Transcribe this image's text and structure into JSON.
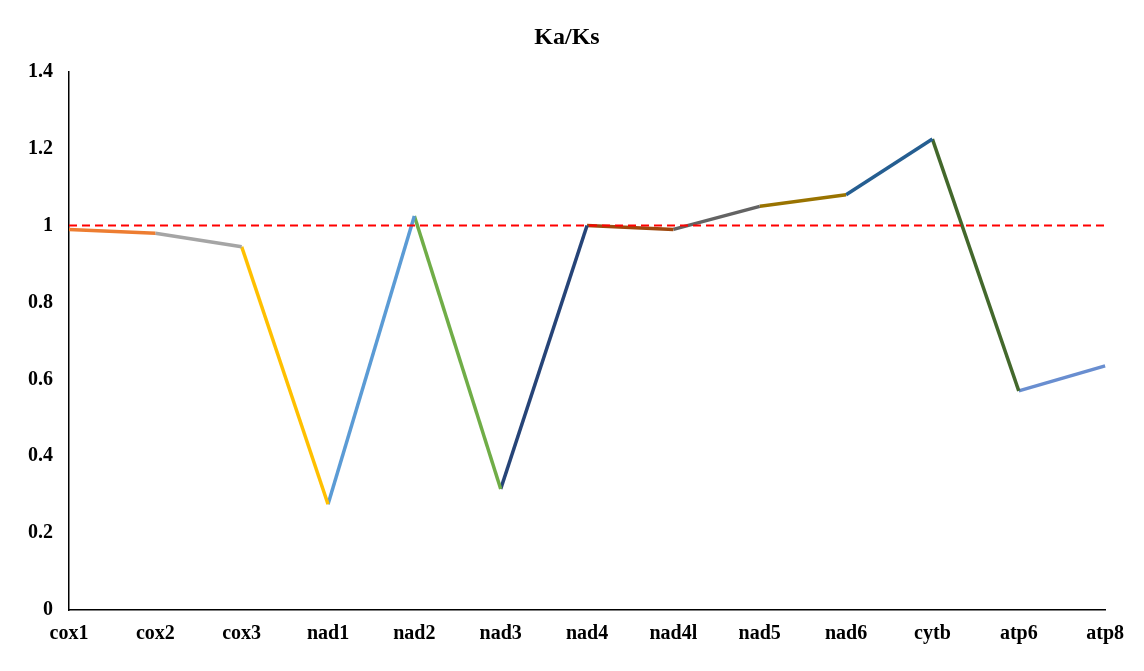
{
  "chart_data": {
    "type": "line",
    "title": "Ka/Ks",
    "categories": [
      "cox1",
      "cox2",
      "cox3",
      "nad1",
      "nad2",
      "nad3",
      "nad4",
      "nad4l",
      "nad5",
      "nad6",
      "cytb",
      "atp6",
      "atp8"
    ],
    "series": [
      {
        "color": "#ed7d31",
        "values": [
          0.99,
          0.98,
          null,
          null,
          null,
          null,
          null,
          null,
          null,
          null,
          null,
          null,
          null
        ]
      },
      {
        "color": "#a5a5a5",
        "values": [
          null,
          0.98,
          0.945,
          null,
          null,
          null,
          null,
          null,
          null,
          null,
          null,
          null,
          null
        ]
      },
      {
        "color": "#ffc000",
        "values": [
          null,
          null,
          0.945,
          0.275,
          null,
          null,
          null,
          null,
          null,
          null,
          null,
          null,
          null
        ]
      },
      {
        "color": "#5b9bd5",
        "values": [
          null,
          null,
          null,
          0.275,
          1.025,
          null,
          null,
          null,
          null,
          null,
          null,
          null,
          null
        ]
      },
      {
        "color": "#70ad47",
        "values": [
          null,
          null,
          null,
          null,
          1.025,
          0.315,
          null,
          null,
          null,
          null,
          null,
          null,
          null
        ]
      },
      {
        "color": "#264478",
        "values": [
          null,
          null,
          null,
          null,
          null,
          0.315,
          1.0,
          null,
          null,
          null,
          null,
          null,
          null
        ]
      },
      {
        "color": "#9e480e",
        "values": [
          null,
          null,
          null,
          null,
          null,
          null,
          1.0,
          0.99,
          null,
          null,
          null,
          null,
          null
        ]
      },
      {
        "color": "#636363",
        "values": [
          null,
          null,
          null,
          null,
          null,
          null,
          null,
          0.99,
          1.05,
          null,
          null,
          null,
          null
        ]
      },
      {
        "color": "#997300",
        "values": [
          null,
          null,
          null,
          null,
          null,
          null,
          null,
          null,
          1.05,
          1.08,
          null,
          null,
          null
        ]
      },
      {
        "color": "#255e91",
        "values": [
          null,
          null,
          null,
          null,
          null,
          null,
          null,
          null,
          null,
          1.08,
          1.225,
          null,
          null
        ]
      },
      {
        "color": "#43682b",
        "values": [
          null,
          null,
          null,
          null,
          null,
          null,
          null,
          null,
          null,
          null,
          1.225,
          0.57,
          null
        ]
      },
      {
        "color": "#698ed0",
        "values": [
          null,
          null,
          null,
          null,
          null,
          null,
          null,
          null,
          null,
          null,
          null,
          0.57,
          0.635
        ]
      }
    ],
    "ylim": [
      0,
      1.4
    ],
    "yticks": [
      0,
      0.2,
      0.4,
      0.6,
      0.8,
      1,
      1.2,
      1.4
    ],
    "ref_lines": [
      {
        "axis": "y",
        "value": 1,
        "color": "#ff0000",
        "line_style": "dashed"
      }
    ],
    "grid": false,
    "legend": false,
    "marker": "none",
    "line_style": "solid"
  }
}
